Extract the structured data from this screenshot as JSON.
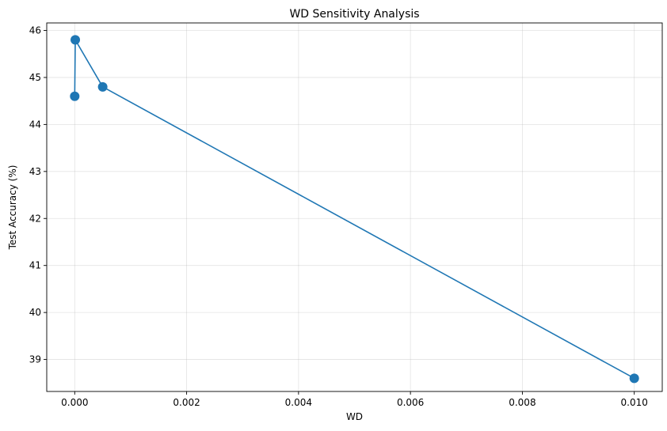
{
  "chart_data": {
    "type": "line",
    "title": "WD Sensitivity Analysis",
    "xlabel": "WD",
    "ylabel": "Test Accuracy (%)",
    "x": [
      0,
      1e-05,
      0.0005,
      0.01
    ],
    "series": [
      {
        "values": [
          44.6,
          45.8,
          44.8,
          38.6
        ],
        "color": "#1f77b4",
        "marker": "circle"
      }
    ],
    "xlim": [
      -0.0005,
      0.0105
    ],
    "ylim": [
      38.32,
      46.16
    ],
    "xticks": [
      0,
      0.002,
      0.004,
      0.006,
      0.008,
      0.01
    ],
    "xtick_labels": [
      "0.000",
      "0.002",
      "0.004",
      "0.006",
      "0.008",
      "0.010"
    ],
    "yticks": [
      39,
      40,
      41,
      42,
      43,
      44,
      45,
      46
    ],
    "ytick_labels": [
      "39",
      "40",
      "41",
      "42",
      "43",
      "44",
      "45",
      "46"
    ],
    "grid": true,
    "legend": "none"
  }
}
